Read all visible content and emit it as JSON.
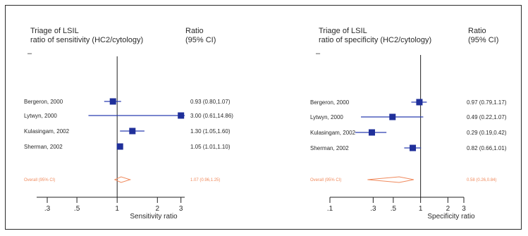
{
  "chart_data": [
    {
      "type": "forest",
      "title_line1": "Triage of LSIL",
      "title_line2": "ratio of sensitivity (HC2/cytology)",
      "ratio_header_line1": "Ratio",
      "ratio_header_line2": "(95% CI)",
      "dash": "–",
      "xlabel": "Sensitivity ratio",
      "xscale": "log",
      "xlim": [
        0.25,
        3.2
      ],
      "ticks": [
        {
          "value": 0.3,
          "label": ".3"
        },
        {
          "value": 0.5,
          "label": ".5"
        },
        {
          "value": 1,
          "label": "1"
        },
        {
          "value": 2,
          "label": "2"
        },
        {
          "value": 3,
          "label": "3"
        }
      ],
      "studies": [
        {
          "name": "Bergeron, 2000",
          "ratio": 0.93,
          "lower": 0.8,
          "upper": 1.07,
          "label": "0.93 (0.80,1.07)"
        },
        {
          "name": "Lytwyn, 2000",
          "ratio": 3.0,
          "lower": 0.61,
          "upper": 14.86,
          "label": "3.00 (0.61,14.86)"
        },
        {
          "name": "Kulasingam, 2002",
          "ratio": 1.3,
          "lower": 1.05,
          "upper": 1.6,
          "label": "1.30 (1.05,1.60)"
        },
        {
          "name": "Sherman, 2002",
          "ratio": 1.05,
          "lower": 1.01,
          "upper": 1.1,
          "label": "1.05 (1.01,1.10)"
        }
      ],
      "overall": {
        "name": "Overall (95% CI)",
        "ratio": 1.07,
        "lower": 0.96,
        "upper": 1.25,
        "label": "1.07 (0.96,1.25)"
      }
    },
    {
      "type": "forest",
      "title_line1": "Triage of LSIL",
      "title_line2": "ratio of specificity (HC2/cytology)",
      "ratio_header_line1": "Ratio",
      "ratio_header_line2": "(95% CI)",
      "dash": "–",
      "xlabel": "Specificity ratio",
      "xscale": "log",
      "xlim": [
        0.1,
        3
      ],
      "ticks": [
        {
          "value": 0.1,
          "label": ".1"
        },
        {
          "value": 0.3,
          "label": ".3"
        },
        {
          "value": 0.5,
          "label": ".5"
        },
        {
          "value": 1,
          "label": "1"
        },
        {
          "value": 2,
          "label": "2"
        },
        {
          "value": 3,
          "label": "3"
        }
      ],
      "studies": [
        {
          "name": "Bergeron, 2000",
          "ratio": 0.97,
          "lower": 0.79,
          "upper": 1.17,
          "label": "0.97 (0.79,1.17)"
        },
        {
          "name": "Lytwyn, 2000",
          "ratio": 0.49,
          "lower": 0.22,
          "upper": 1.07,
          "label": "0.49 (0.22,1.07)"
        },
        {
          "name": "Kulasingam, 2002",
          "ratio": 0.29,
          "lower": 0.19,
          "upper": 0.42,
          "label": "0.29 (0.19,0.42)"
        },
        {
          "name": "Sherman, 2002",
          "ratio": 0.82,
          "lower": 0.66,
          "upper": 1.01,
          "label": "0.82 (0.66,1.01)"
        }
      ],
      "overall": {
        "name": "Overall (95% CI)",
        "ratio": 0.58,
        "lower": 0.26,
        "upper": 0.84,
        "label": "0.58 (0.26,0.84)"
      }
    }
  ],
  "colors": {
    "marker": "#1f2f9a",
    "ci_line": "#2a3db0",
    "overall": "#f08a5d",
    "axis": "#222222",
    "text": "#2a2a2a",
    "border": "#2b2b2b"
  }
}
